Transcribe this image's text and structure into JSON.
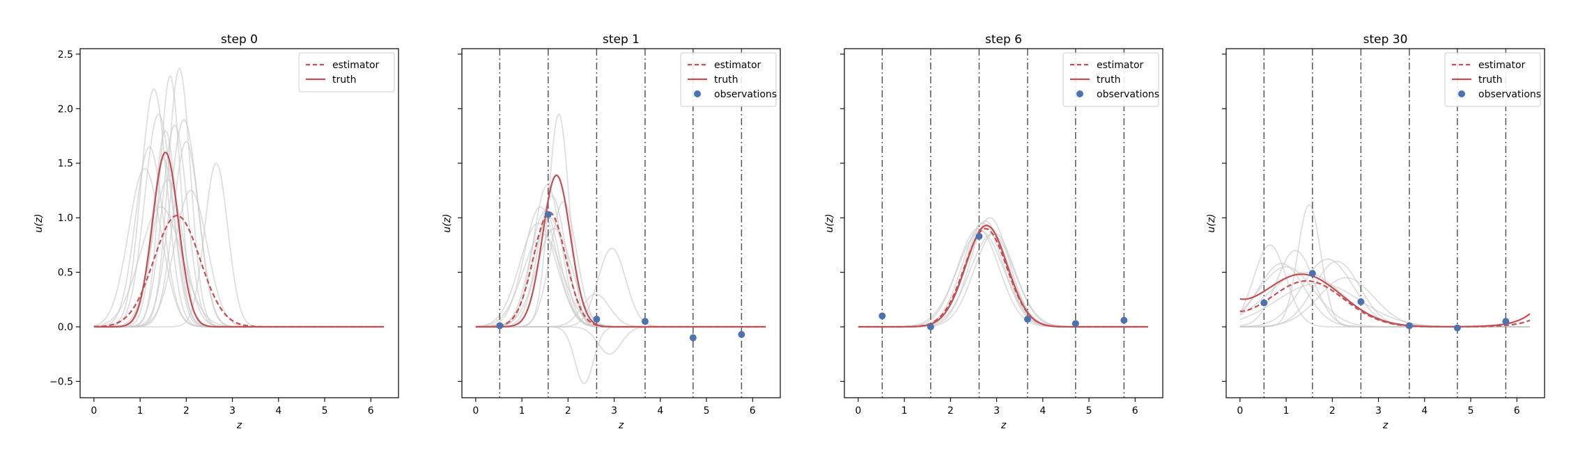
{
  "figure": {
    "background": "#ffffff",
    "colors": {
      "estimator": "#c44e52",
      "truth": "#c44e52",
      "ensemble": "#c8c8c8",
      "observations": "#4c72b0",
      "sensor_lines": "#555555"
    }
  },
  "chart_data": [
    {
      "type": "line",
      "title": "step 0",
      "xlabel": "z",
      "ylabel": "u(z)",
      "xlim": [
        -0.3,
        6.6
      ],
      "ylim": [
        -0.65,
        2.55
      ],
      "xticks": [
        "0",
        "1",
        "2",
        "3",
        "4",
        "5",
        "6"
      ],
      "yticks": [
        "−0.5",
        "0.0",
        "0.5",
        "1.0",
        "1.5",
        "2.0",
        "2.5"
      ],
      "show_yticklabels": true,
      "legend": {
        "position": "top-right",
        "entries": [
          "estimator",
          "truth"
        ]
      },
      "truth": {
        "amplitude": 1.6,
        "center": 1.55,
        "width": 0.28,
        "baseline": 0.0
      },
      "estimator": {
        "amplitude": 1.02,
        "center": 1.8,
        "width": 0.5,
        "baseline": 0.0
      },
      "ensemble": [
        {
          "amplitude": 1.45,
          "center": 1.1,
          "width": 0.35
        },
        {
          "amplitude": 1.65,
          "center": 1.2,
          "width": 0.3
        },
        {
          "amplitude": 2.18,
          "center": 1.3,
          "width": 0.28
        },
        {
          "amplitude": 1.95,
          "center": 1.4,
          "width": 0.3
        },
        {
          "amplitude": 1.55,
          "center": 1.5,
          "width": 0.25
        },
        {
          "amplitude": 2.3,
          "center": 1.65,
          "width": 0.22
        },
        {
          "amplitude": 1.85,
          "center": 1.75,
          "width": 0.27
        },
        {
          "amplitude": 2.37,
          "center": 1.85,
          "width": 0.24
        },
        {
          "amplitude": 1.9,
          "center": 1.95,
          "width": 0.3
        },
        {
          "amplitude": 1.35,
          "center": 1.6,
          "width": 0.33
        },
        {
          "amplitude": 1.7,
          "center": 2.0,
          "width": 0.28
        },
        {
          "amplitude": 1.1,
          "center": 1.45,
          "width": 0.45
        },
        {
          "amplitude": 1.5,
          "center": 2.65,
          "width": 0.25
        },
        {
          "amplitude": 1.25,
          "center": 2.1,
          "width": 0.35
        },
        {
          "amplitude": 1.8,
          "center": 1.55,
          "width": 0.24
        }
      ],
      "sensor_positions": [],
      "observations": []
    },
    {
      "type": "line",
      "title": "step 1",
      "xlabel": "z",
      "ylabel": "u(z)",
      "xlim": [
        -0.3,
        6.6
      ],
      "ylim": [
        -0.65,
        2.55
      ],
      "xticks": [
        "0",
        "1",
        "2",
        "3",
        "4",
        "5",
        "6"
      ],
      "yticks": [
        "−0.5",
        "0.0",
        "0.5",
        "1.0",
        "1.5",
        "2.0",
        "2.5"
      ],
      "show_yticklabels": false,
      "legend": {
        "position": "top-right",
        "entries": [
          "estimator",
          "truth",
          "observations"
        ]
      },
      "truth": {
        "amplitude": 1.39,
        "center": 1.75,
        "width": 0.3,
        "baseline": 0.0
      },
      "estimator": {
        "amplitude": 1.05,
        "center": 1.6,
        "width": 0.35,
        "baseline": 0.0
      },
      "ensemble": [
        {
          "amplitude": 1.1,
          "center": 1.4,
          "width": 0.35
        },
        {
          "amplitude": 1.3,
          "center": 1.55,
          "width": 0.3
        },
        {
          "amplitude": 1.95,
          "center": 1.8,
          "width": 0.22
        },
        {
          "amplitude": 0.95,
          "center": 1.35,
          "width": 0.4
        },
        {
          "amplitude": 1.05,
          "center": 1.5,
          "width": 0.32
        },
        {
          "amplitude": 0.9,
          "center": 1.7,
          "width": 0.38
        },
        {
          "amplitude": 1.2,
          "center": 1.65,
          "width": 0.3
        },
        {
          "amplitude": 0.85,
          "center": 1.45,
          "width": 0.42
        },
        {
          "amplitude": 1.15,
          "center": 1.9,
          "width": 0.28
        },
        {
          "amplitude": 0.72,
          "center": 2.95,
          "width": 0.3
        },
        {
          "amplitude": -0.52,
          "center": 2.35,
          "width": 0.2
        },
        {
          "amplitude": 1.0,
          "center": 1.6,
          "width": 0.36
        },
        {
          "amplitude": 0.3,
          "center": 2.6,
          "width": 0.3
        },
        {
          "amplitude": -0.25,
          "center": 2.9,
          "width": 0.25
        }
      ],
      "sensor_positions": [
        0.52,
        1.57,
        2.62,
        3.67,
        4.71,
        5.76
      ],
      "observations": [
        {
          "x": 0.52,
          "y": 0.01
        },
        {
          "x": 1.57,
          "y": 1.03
        },
        {
          "x": 2.62,
          "y": 0.07
        },
        {
          "x": 3.67,
          "y": 0.05
        },
        {
          "x": 4.71,
          "y": -0.1
        },
        {
          "x": 5.76,
          "y": -0.07
        }
      ]
    },
    {
      "type": "line",
      "title": "step 6",
      "xlabel": "z",
      "ylabel": "u(z)",
      "xlim": [
        -0.3,
        6.6
      ],
      "ylim": [
        -0.65,
        2.55
      ],
      "xticks": [
        "0",
        "1",
        "2",
        "3",
        "4",
        "5",
        "6"
      ],
      "yticks": [
        "−0.5",
        "0.0",
        "0.5",
        "1.0",
        "1.5",
        "2.0",
        "2.5"
      ],
      "show_yticklabels": false,
      "legend": {
        "position": "top-right",
        "entries": [
          "estimator",
          "truth",
          "observations"
        ]
      },
      "truth": {
        "amplitude": 0.93,
        "center": 2.78,
        "width": 0.45,
        "baseline": 0.0
      },
      "estimator": {
        "amplitude": 0.9,
        "center": 2.76,
        "width": 0.46,
        "baseline": 0.0
      },
      "ensemble": [
        {
          "amplitude": 0.95,
          "center": 2.7,
          "width": 0.44
        },
        {
          "amplitude": 1.0,
          "center": 2.85,
          "width": 0.42
        },
        {
          "amplitude": 0.88,
          "center": 2.65,
          "width": 0.5
        },
        {
          "amplitude": 0.92,
          "center": 2.8,
          "width": 0.46
        },
        {
          "amplitude": 0.85,
          "center": 2.9,
          "width": 0.48
        },
        {
          "amplitude": 0.97,
          "center": 2.75,
          "width": 0.43
        },
        {
          "amplitude": 0.9,
          "center": 2.6,
          "width": 0.45
        },
        {
          "amplitude": 0.86,
          "center": 2.95,
          "width": 0.44
        }
      ],
      "sensor_positions": [
        0.52,
        1.57,
        2.62,
        3.67,
        4.71,
        5.76
      ],
      "observations": [
        {
          "x": 0.52,
          "y": 0.1
        },
        {
          "x": 1.57,
          "y": 0.0
        },
        {
          "x": 2.62,
          "y": 0.83
        },
        {
          "x": 3.67,
          "y": 0.07
        },
        {
          "x": 4.71,
          "y": 0.03
        },
        {
          "x": 5.76,
          "y": 0.06
        }
      ]
    },
    {
      "type": "line",
      "title": "step 30",
      "xlabel": "z",
      "ylabel": "u(z)",
      "xlim": [
        -0.3,
        6.6
      ],
      "ylim": [
        -0.65,
        2.55
      ],
      "xticks": [
        "0",
        "1",
        "2",
        "3",
        "4",
        "5",
        "6"
      ],
      "yticks": [
        "−0.5",
        "0.0",
        "0.5",
        "1.0",
        "1.5",
        "2.0",
        "2.5"
      ],
      "show_yticklabels": false,
      "legend": {
        "position": "top-right",
        "entries": [
          "estimator",
          "truth",
          "observations"
        ]
      },
      "truth": {
        "amplitude": 0.48,
        "center": 1.35,
        "width": 0.85,
        "baseline": 0.0,
        "edge_rise": 0.12
      },
      "estimator": {
        "amplitude": 0.42,
        "center": 1.45,
        "width": 0.8,
        "baseline": 0.0,
        "edge_rise": 0.06
      },
      "ensemble": [
        {
          "amplitude": 1.12,
          "center": 1.5,
          "width": 0.25
        },
        {
          "amplitude": 0.75,
          "center": 0.65,
          "width": 0.35
        },
        {
          "amplitude": 0.6,
          "center": 2.1,
          "width": 0.5
        },
        {
          "amplitude": 0.55,
          "center": 1.0,
          "width": 0.6
        },
        {
          "amplitude": 0.62,
          "center": 1.9,
          "width": 0.55
        },
        {
          "amplitude": 0.5,
          "center": 1.4,
          "width": 0.8
        },
        {
          "amplitude": 0.7,
          "center": 1.2,
          "width": 0.4
        },
        {
          "amplitude": 0.45,
          "center": 2.3,
          "width": 0.6
        },
        {
          "amplitude": 0.58,
          "center": 0.9,
          "width": 0.5
        },
        {
          "amplitude": 0.4,
          "center": 1.7,
          "width": 0.9
        }
      ],
      "sensor_positions": [
        0.52,
        1.57,
        2.62,
        3.67,
        4.71,
        5.76
      ],
      "observations": [
        {
          "x": 0.52,
          "y": 0.22
        },
        {
          "x": 1.57,
          "y": 0.49
        },
        {
          "x": 2.62,
          "y": 0.23
        },
        {
          "x": 3.67,
          "y": 0.01
        },
        {
          "x": 4.71,
          "y": -0.01
        },
        {
          "x": 5.76,
          "y": 0.05
        }
      ]
    }
  ]
}
